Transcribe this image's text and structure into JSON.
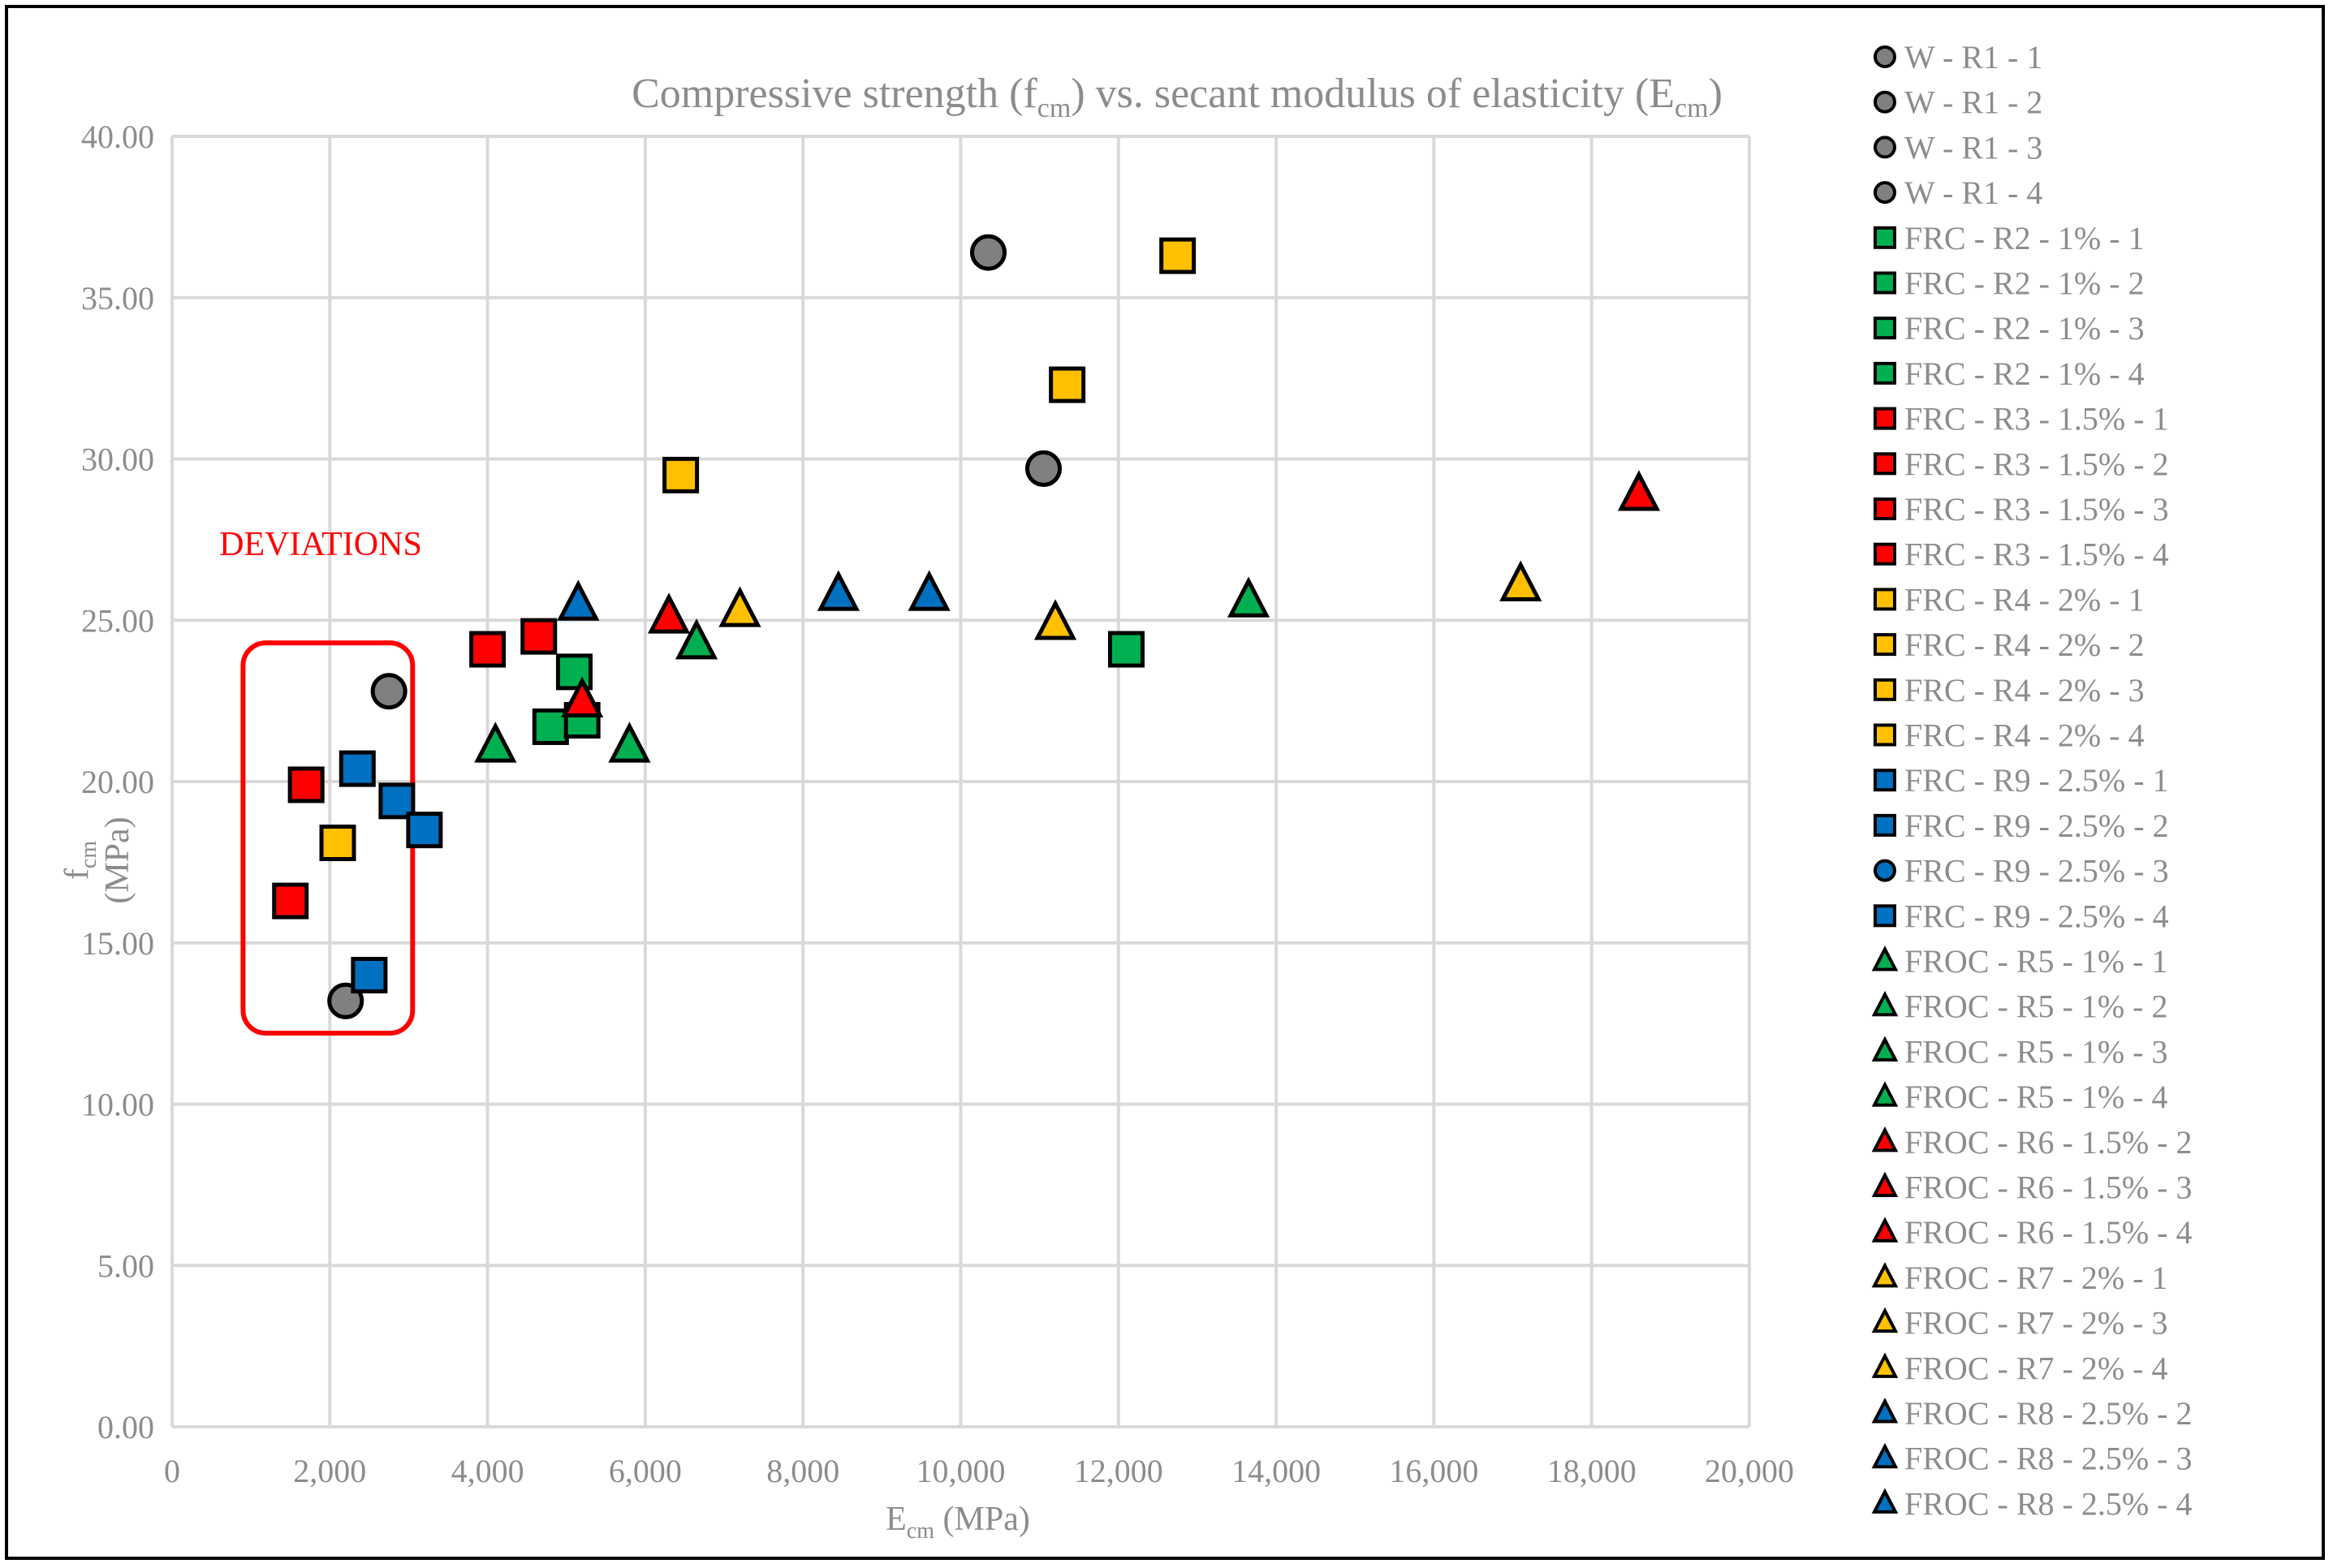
{
  "chart_data": {
    "type": "scatter",
    "title": "Compressive strength (f",
    "title_sub1": "cm",
    "title_mid": ") vs. secant modulus of elasticity (E",
    "title_sub2": "cm",
    "title_end": ")",
    "xlabel_main": "E",
    "xlabel_sub": "cm",
    "xlabel_unit": " (MPa)",
    "ylabel_main": "f",
    "ylabel_sub": "cm",
    "ylabel_unit": "(MPa)",
    "xlim": [
      0,
      20000
    ],
    "ylim": [
      0,
      40
    ],
    "grid": true,
    "legend_position": "right",
    "x_ticks": [
      {
        "v": 0,
        "label": "0"
      },
      {
        "v": 2000,
        "label": "2,000"
      },
      {
        "v": 4000,
        "label": "4,000"
      },
      {
        "v": 6000,
        "label": "6,000"
      },
      {
        "v": 8000,
        "label": "8,000"
      },
      {
        "v": 10000,
        "label": "10,000"
      },
      {
        "v": 12000,
        "label": "12,000"
      },
      {
        "v": 14000,
        "label": "14,000"
      },
      {
        "v": 16000,
        "label": "16,000"
      },
      {
        "v": 18000,
        "label": "18,000"
      },
      {
        "v": 20000,
        "label": "20,000"
      }
    ],
    "y_ticks": [
      {
        "v": 0,
        "label": "0.00"
      },
      {
        "v": 5,
        "label": "5.00"
      },
      {
        "v": 10,
        "label": "10.00"
      },
      {
        "v": 15,
        "label": "15.00"
      },
      {
        "v": 20,
        "label": "20.00"
      },
      {
        "v": 25,
        "label": "25.00"
      },
      {
        "v": 30,
        "label": "30.00"
      },
      {
        "v": 35,
        "label": "35.00"
      },
      {
        "v": 40,
        "label": "40.00"
      }
    ],
    "annotation": {
      "text": "DEVIATIONS",
      "box_x": [
        900,
        3050
      ],
      "box_y": [
        12.2,
        24.3
      ],
      "color": "#ff0000"
    },
    "series": [
      {
        "name": "W - R1 - 1",
        "marker": "circle",
        "color": "#808080",
        "x": 10350,
        "y": 36.4
      },
      {
        "name": "W - R1 - 2",
        "marker": "circle",
        "color": "#808080",
        "x": 11050,
        "y": 29.7
      },
      {
        "name": "W - R1 - 3",
        "marker": "circle",
        "color": "#808080",
        "x": 2750,
        "y": 22.8
      },
      {
        "name": "W - R1 - 4",
        "marker": "circle",
        "color": "#808080",
        "x": 2200,
        "y": 13.2
      },
      {
        "name": "FRC - R2 - 1% - 1",
        "marker": "square",
        "color": "#00b050",
        "x": 12100,
        "y": 24.1
      },
      {
        "name": "FRC - R2 - 1% - 2",
        "marker": "square",
        "color": "#00b050",
        "x": 5100,
        "y": 23.4
      },
      {
        "name": "FRC - R2 - 1% - 3",
        "marker": "square",
        "color": "#00b050",
        "x": 4800,
        "y": 21.7
      },
      {
        "name": "FRC - R2 - 1% - 4",
        "marker": "square",
        "color": "#00b050",
        "x": 5200,
        "y": 21.9
      },
      {
        "name": "FRC - R3 - 1.5% - 1",
        "marker": "square",
        "color": "#ff0000",
        "x": 4000,
        "y": 24.1
      },
      {
        "name": "FRC - R3 - 1.5% - 2",
        "marker": "square",
        "color": "#ff0000",
        "x": 4650,
        "y": 24.5
      },
      {
        "name": "FRC - R3 - 1.5% - 3",
        "marker": "square",
        "color": "#ff0000",
        "x": 1700,
        "y": 19.9
      },
      {
        "name": "FRC - R3 - 1.5% - 4",
        "marker": "square",
        "color": "#ff0000",
        "x": 1500,
        "y": 16.3
      },
      {
        "name": "FRC - R4 - 2% - 1",
        "marker": "square",
        "color": "#ffc000",
        "x": 12750,
        "y": 36.3
      },
      {
        "name": "FRC - R4 - 2% - 2",
        "marker": "square",
        "color": "#ffc000",
        "x": 11350,
        "y": 32.3
      },
      {
        "name": "FRC - R4 - 2% - 3",
        "marker": "square",
        "color": "#ffc000",
        "x": 6450,
        "y": 29.5
      },
      {
        "name": "FRC - R4 - 2% - 4",
        "marker": "square",
        "color": "#ffc000",
        "x": 2100,
        "y": 18.1
      },
      {
        "name": "FRC - R9 - 2.5% - 1",
        "marker": "square",
        "color": "#0070c0",
        "x": 2350,
        "y": 20.4
      },
      {
        "name": "FRC - R9 - 2.5% - 2",
        "marker": "square",
        "color": "#0070c0",
        "x": 2850,
        "y": 19.4
      },
      {
        "name": "FRC - R9 - 2.5% - 3",
        "marker": "circle",
        "color": "#0070c0",
        "x": 3200,
        "y": 18.5,
        "draw_as": "square"
      },
      {
        "name": "FRC - R9 - 2.5% - 4",
        "marker": "square",
        "color": "#0070c0",
        "x": 2500,
        "y": 14.0
      },
      {
        "name": "FROC - R5 - 1% - 1",
        "marker": "triangle",
        "color": "#00b050",
        "x": 13650,
        "y": 25.6
      },
      {
        "name": "FROC - R5 - 1% - 2",
        "marker": "triangle",
        "color": "#00b050",
        "x": 6650,
        "y": 24.3
      },
      {
        "name": "FROC - R5 - 1% - 3",
        "marker": "triangle",
        "color": "#00b050",
        "x": 4100,
        "y": 21.1
      },
      {
        "name": "FROC - R5 - 1% - 4",
        "marker": "triangle",
        "color": "#00b050",
        "x": 5800,
        "y": 21.1
      },
      {
        "name": "FROC - R6 - 1.5% - 2",
        "marker": "triangle",
        "color": "#ff0000",
        "x": 18600,
        "y": 28.9
      },
      {
        "name": "FROC - R6 - 1.5% - 3",
        "marker": "triangle",
        "color": "#ff0000",
        "x": 6300,
        "y": 25.1
      },
      {
        "name": "FROC - R6 - 1.5% - 4",
        "marker": "triangle",
        "color": "#ff0000",
        "x": 5200,
        "y": 22.5
      },
      {
        "name": "FROC - R7 - 2% - 1",
        "marker": "triangle",
        "color": "#ffc000",
        "x": 17100,
        "y": 26.1
      },
      {
        "name": "FROC - R7 - 2% - 3",
        "marker": "triangle",
        "color": "#ffc000",
        "x": 7200,
        "y": 25.3
      },
      {
        "name": "FROC - R7 - 2% - 4",
        "marker": "triangle",
        "color": "#ffc000",
        "x": 11200,
        "y": 24.9
      },
      {
        "name": "FROC - R8 - 2.5% - 2",
        "marker": "triangle",
        "color": "#0070c0",
        "x": 8450,
        "y": 25.8
      },
      {
        "name": "FROC - R8 - 2.5% - 3",
        "marker": "triangle",
        "color": "#0070c0",
        "x": 9600,
        "y": 25.8
      },
      {
        "name": "FROC - R8 - 2.5% - 4",
        "marker": "triangle",
        "color": "#0070c0",
        "x": 5150,
        "y": 25.5
      }
    ]
  }
}
